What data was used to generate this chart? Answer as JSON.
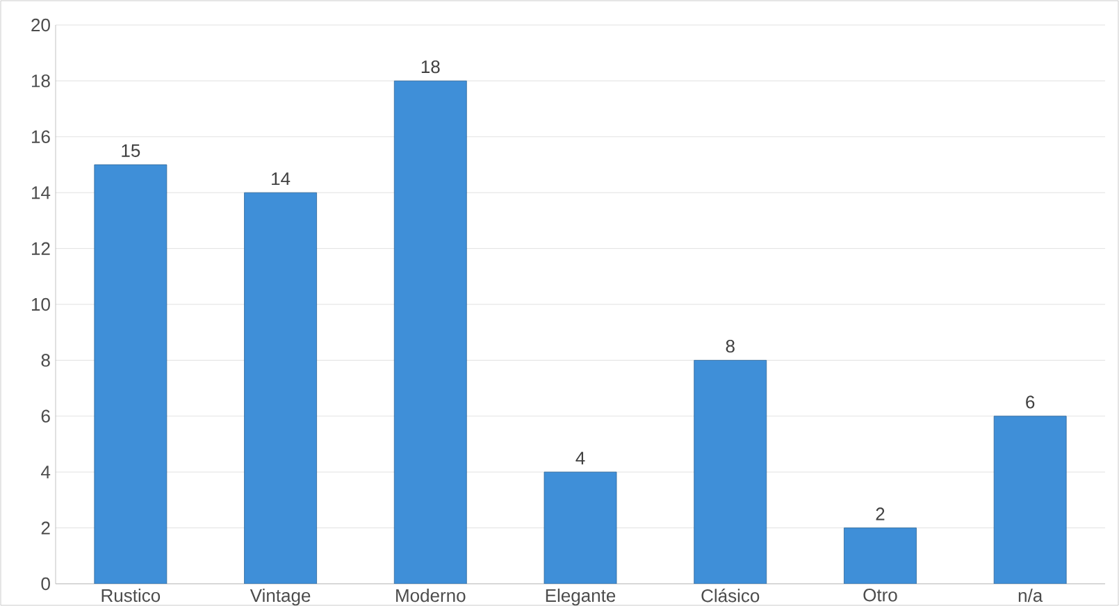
{
  "chart_data": {
    "type": "bar",
    "categories": [
      "Rustico",
      "Vintage",
      "Moderno",
      "Elegante",
      "Clásico",
      "Otro",
      "n/a"
    ],
    "values": [
      15,
      14,
      18,
      4,
      8,
      2,
      6
    ],
    "color": "#3f8fd8",
    "ylim": [
      0,
      20
    ],
    "yticks": [
      0,
      2,
      4,
      6,
      8,
      10,
      12,
      14,
      16,
      18,
      20
    ],
    "grid": "y",
    "data_labels": true
  }
}
